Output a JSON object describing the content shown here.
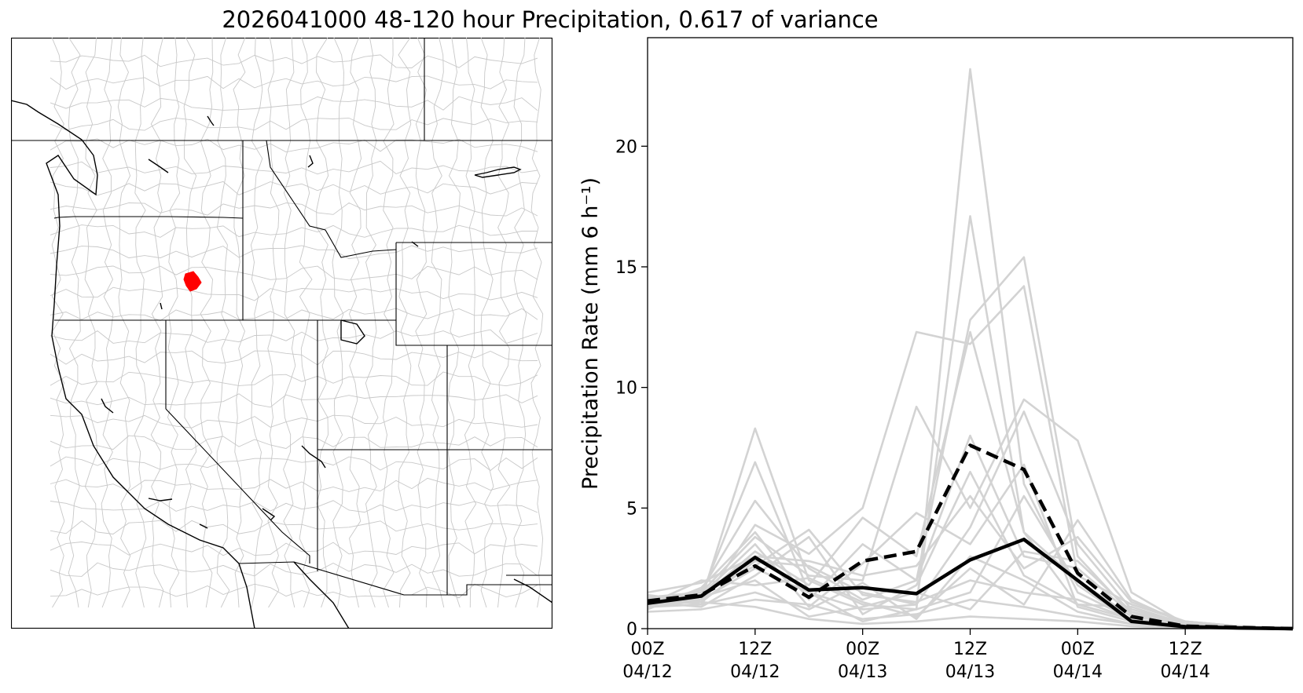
{
  "figure": {
    "title": "2026041000 48-120 hour Precipitation, 0.617 of variance"
  },
  "map": {
    "basin_boundary_color": "#c8c8c8",
    "state_border_color": "#000000",
    "highlighted_basin_color": "#ff0000"
  },
  "chart_data": {
    "type": "line",
    "title": "",
    "xlabel": "",
    "ylabel": "Precipitation Rate (mm 6 h⁻¹)",
    "ylim": [
      0,
      24.5
    ],
    "yticks": [
      0,
      5,
      10,
      15,
      20
    ],
    "x_tick_labels": [
      [
        "00Z",
        "04/12"
      ],
      [
        "12Z",
        "04/12"
      ],
      [
        "00Z",
        "04/13"
      ],
      [
        "12Z",
        "04/13"
      ],
      [
        "00Z",
        "04/14"
      ],
      [
        "12Z",
        "04/14"
      ]
    ],
    "x_times": [
      "04/12 00Z",
      "04/12 06Z",
      "04/12 12Z",
      "04/12 18Z",
      "04/13 00Z",
      "04/13 06Z",
      "04/13 12Z",
      "04/13 18Z",
      "04/14 00Z",
      "04/14 06Z",
      "04/14 12Z",
      "04/14 18Z",
      "04/15 00Z"
    ],
    "grid": false,
    "ensemble_color": "#d3d3d3",
    "observed_color": "#000000",
    "series": [
      {
        "style": "ensemble",
        "values": [
          1.0,
          1.2,
          8.3,
          2.0,
          1.0,
          0.8,
          23.2,
          6.0,
          1.5,
          0.4,
          0.1,
          0.05,
          0.0
        ]
      },
      {
        "style": "ensemble",
        "values": [
          1.2,
          1.4,
          6.9,
          1.5,
          0.8,
          1.0,
          17.1,
          4.0,
          2.0,
          0.5,
          0.2,
          0.1,
          0.0
        ]
      },
      {
        "style": "ensemble",
        "values": [
          1.1,
          1.6,
          5.3,
          2.5,
          1.2,
          2.0,
          12.8,
          15.4,
          3.0,
          0.6,
          0.2,
          0.05,
          0.0
        ]
      },
      {
        "style": "ensemble",
        "values": [
          0.9,
          1.0,
          4.3,
          3.1,
          5.0,
          12.3,
          11.8,
          14.2,
          2.2,
          1.0,
          0.3,
          0.1,
          0.0
        ]
      },
      {
        "style": "ensemble",
        "values": [
          1.3,
          1.5,
          3.8,
          2.2,
          2.0,
          9.2,
          5.0,
          9.5,
          7.8,
          1.5,
          0.2,
          0.05,
          0.0
        ]
      },
      {
        "style": "ensemble",
        "values": [
          1.0,
          1.3,
          3.2,
          1.8,
          4.6,
          3.0,
          12.3,
          4.0,
          1.0,
          0.4,
          0.1,
          0.05,
          0.0
        ]
      },
      {
        "style": "ensemble",
        "values": [
          1.4,
          1.1,
          2.8,
          2.6,
          1.5,
          1.0,
          4.2,
          9.0,
          3.5,
          0.8,
          0.2,
          0.1,
          0.0
        ]
      },
      {
        "style": "ensemble",
        "values": [
          0.8,
          1.7,
          4.0,
          1.2,
          3.5,
          2.0,
          8.0,
          3.0,
          2.5,
          0.6,
          0.3,
          0.1,
          0.0
        ]
      },
      {
        "style": "ensemble",
        "values": [
          1.1,
          0.9,
          2.2,
          3.8,
          0.6,
          1.8,
          6.5,
          2.2,
          1.0,
          0.9,
          0.2,
          0.05,
          0.0
        ]
      },
      {
        "style": "ensemble",
        "values": [
          1.2,
          1.4,
          3.5,
          0.9,
          2.7,
          4.8,
          3.5,
          6.8,
          0.9,
          0.3,
          0.1,
          0.0,
          0.0
        ]
      },
      {
        "style": "ensemble",
        "values": [
          1.0,
          2.0,
          1.8,
          2.1,
          1.1,
          0.5,
          2.5,
          1.0,
          4.5,
          1.2,
          0.2,
          0.1,
          0.0
        ]
      },
      {
        "style": "ensemble",
        "values": [
          0.9,
          1.2,
          2.5,
          1.5,
          0.3,
          0.8,
          1.5,
          5.5,
          1.8,
          0.3,
          0.1,
          0.0,
          0.0
        ]
      },
      {
        "style": "ensemble",
        "values": [
          1.3,
          1.0,
          1.5,
          0.8,
          1.9,
          0.4,
          3.0,
          2.0,
          0.7,
          0.2,
          0.1,
          0.0,
          0.0
        ]
      },
      {
        "style": "ensemble",
        "values": [
          1.1,
          1.3,
          2.0,
          0.5,
          0.9,
          1.5,
          0.8,
          3.2,
          2.8,
          0.7,
          0.2,
          0.05,
          0.0
        ]
      },
      {
        "style": "ensemble",
        "values": [
          0.7,
          0.8,
          1.2,
          1.0,
          0.4,
          0.6,
          1.2,
          0.9,
          0.5,
          0.2,
          0.05,
          0.0,
          0.0
        ]
      },
      {
        "style": "ensemble",
        "values": [
          1.5,
          1.9,
          3.0,
          2.8,
          2.2,
          2.6,
          5.5,
          2.5,
          3.8,
          1.1,
          0.3,
          0.1,
          0.0
        ]
      },
      {
        "style": "ensemble",
        "values": [
          1.0,
          1.1,
          0.9,
          0.4,
          0.2,
          0.3,
          0.5,
          0.4,
          0.3,
          0.1,
          0.0,
          0.0,
          0.0
        ]
      },
      {
        "style": "ensemble",
        "values": [
          1.2,
          1.5,
          2.6,
          4.1,
          1.4,
          1.1,
          2.0,
          1.5,
          1.2,
          0.4,
          0.1,
          0.0,
          0.0
        ]
      },
      {
        "style": "observed",
        "values": [
          1.05,
          1.35,
          2.95,
          1.6,
          1.7,
          1.45,
          2.85,
          3.7,
          2.0,
          0.3,
          0.08,
          0.03,
          0.0
        ]
      },
      {
        "style": "forecast-mean",
        "values": [
          1.15,
          1.4,
          2.6,
          1.3,
          2.8,
          3.2,
          7.6,
          6.6,
          2.3,
          0.5,
          0.1,
          0.05,
          0.0
        ]
      }
    ]
  }
}
